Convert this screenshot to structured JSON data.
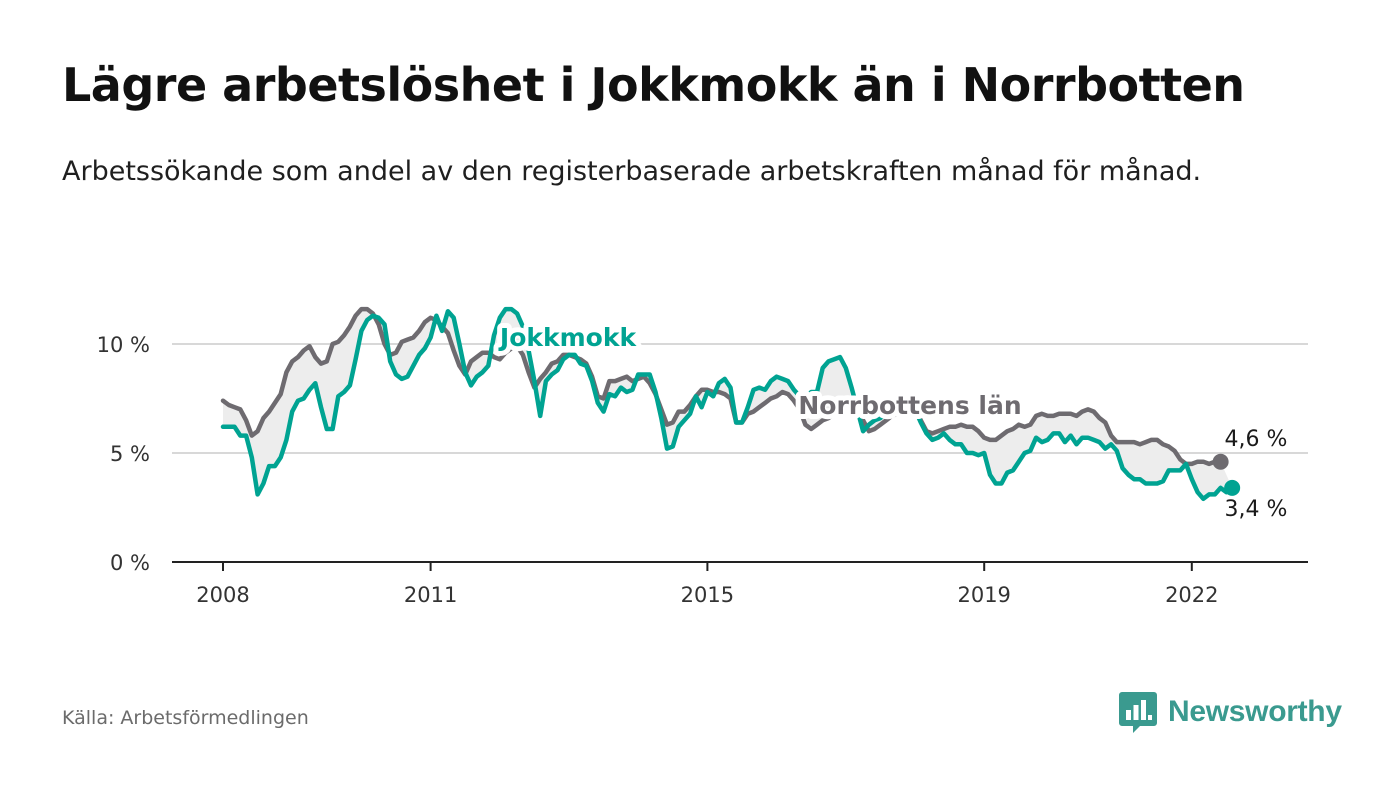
{
  "title": "Lägre arbetslöshet i Jokkmokk än i Norrbotten",
  "subtitle": "Arbetssökande som andel av den registerbaserade arbetskraften månad för månad.",
  "source": "Källa: Arbetsförmedlingen",
  "brand": "Newsworthy",
  "colors": {
    "jokkmokk": "#00a392",
    "norrbotten": "#6e6b70",
    "fill": "#ededed",
    "grid": "#d8d8d8"
  },
  "chart_data": {
    "type": "line",
    "title": "Lägre arbetslöshet i Jokkmokk än i Norrbotten",
    "xlabel": "",
    "ylabel": "",
    "xlim": [
      2008.0,
      2023.25
    ],
    "ylim": [
      0,
      10
    ],
    "y_ticks": [
      {
        "value": 0,
        "label": "0 %"
      },
      {
        "value": 5,
        "label": "5 %"
      },
      {
        "value": 10,
        "label": "10 %"
      }
    ],
    "x_ticks": [
      {
        "value": 2008,
        "label": "2008"
      },
      {
        "value": 2011,
        "label": "2011"
      },
      {
        "value": 2015,
        "label": "2015"
      },
      {
        "value": 2019,
        "label": "2019"
      },
      {
        "value": 2022,
        "label": "2022"
      }
    ],
    "series": [
      {
        "name": "Jokkmokk",
        "label": "Jokkmokk",
        "end_label": "3,4 %",
        "values": [
          6.2,
          6.2,
          6.2,
          5.8,
          5.8,
          4.8,
          3.1,
          3.6,
          4.4,
          4.4,
          4.8,
          5.6,
          6.9,
          7.4,
          7.5,
          7.9,
          8.2,
          7.1,
          6.1,
          6.1,
          7.6,
          7.8,
          8.1,
          9.3,
          10.6,
          11.1,
          11.3,
          11.2,
          10.9,
          9.2,
          8.6,
          8.4,
          8.5,
          9.0,
          9.5,
          9.8,
          10.3,
          11.3,
          10.6,
          11.5,
          11.2,
          10.0,
          8.7,
          8.1,
          8.5,
          8.7,
          9.0,
          10.4,
          11.2,
          11.6,
          11.6,
          11.4,
          10.8,
          9.7,
          8.3,
          6.7,
          8.3,
          8.6,
          8.8,
          9.3,
          9.5,
          9.5,
          9.1,
          9.0,
          8.3,
          7.3,
          6.9,
          7.7,
          7.6,
          8.0,
          7.8,
          7.9,
          8.6,
          8.6,
          8.6,
          7.8,
          6.6,
          5.2,
          5.3,
          6.2,
          6.5,
          6.8,
          7.6,
          7.1,
          7.8,
          7.6,
          8.2,
          8.4,
          8.0,
          6.4,
          6.4,
          7.1,
          7.9,
          8.0,
          7.9,
          8.3,
          8.5,
          8.4,
          8.3,
          7.9,
          7.6,
          7.5,
          7.8,
          7.8,
          8.9,
          9.2,
          9.3,
          9.4,
          8.9,
          8.0,
          7.0,
          6.0,
          6.3,
          6.5,
          6.6,
          6.8,
          7.0,
          7.1,
          7.3,
          7.4,
          7.0,
          6.4,
          5.9,
          5.6,
          5.7,
          5.9,
          5.6,
          5.4,
          5.4,
          5.0,
          5.0,
          4.9,
          5.0,
          4.0,
          3.6,
          3.6,
          4.1,
          4.2,
          4.6,
          5.0,
          5.1,
          5.7,
          5.5,
          5.6,
          5.9,
          5.9,
          5.5,
          5.8,
          5.4,
          5.7,
          5.7,
          5.6,
          5.5,
          5.2,
          5.4,
          5.1,
          4.3,
          4.0,
          3.8,
          3.8,
          3.6,
          3.6,
          3.6,
          3.7,
          4.2,
          4.2,
          4.2,
          4.5,
          3.8,
          3.2,
          2.9,
          3.1,
          3.1,
          3.4,
          3.2,
          3.4
        ]
      },
      {
        "name": "Norrbottens län",
        "label": "Norrbottens län",
        "end_label": "4,6 %",
        "values": [
          7.4,
          7.2,
          7.1,
          7.0,
          6.5,
          5.8,
          6.0,
          6.6,
          6.9,
          7.3,
          7.7,
          8.7,
          9.2,
          9.4,
          9.7,
          9.9,
          9.4,
          9.1,
          9.2,
          10.0,
          10.1,
          10.4,
          10.8,
          11.3,
          11.6,
          11.6,
          11.4,
          10.9,
          10.0,
          9.5,
          9.6,
          10.1,
          10.2,
          10.3,
          10.6,
          11.0,
          11.2,
          11.1,
          10.8,
          10.5,
          9.7,
          9.0,
          8.6,
          9.2,
          9.4,
          9.6,
          9.6,
          9.4,
          9.3,
          9.6,
          9.8,
          9.9,
          9.5,
          8.7,
          8.0,
          8.4,
          8.7,
          9.1,
          9.2,
          9.5,
          9.5,
          9.4,
          9.3,
          9.1,
          8.5,
          7.6,
          7.5,
          8.3,
          8.3,
          8.4,
          8.5,
          8.3,
          8.4,
          8.5,
          8.2,
          7.7,
          7.0,
          6.3,
          6.4,
          6.9,
          6.9,
          7.2,
          7.6,
          7.9,
          7.9,
          7.8,
          7.8,
          7.7,
          7.5,
          6.4,
          6.4,
          6.8,
          6.9,
          7.1,
          7.3,
          7.5,
          7.6,
          7.8,
          7.7,
          7.4,
          7.0,
          6.3,
          6.1,
          6.3,
          6.5,
          6.6,
          6.8,
          7.0,
          7.1,
          7.2,
          6.9,
          6.5,
          6.0,
          6.1,
          6.3,
          6.5,
          6.7,
          6.8,
          6.9,
          7.0,
          7.0,
          6.5,
          6.0,
          5.9,
          6.0,
          6.1,
          6.2,
          6.2,
          6.3,
          6.2,
          6.2,
          6.0,
          5.7,
          5.6,
          5.6,
          5.8,
          6.0,
          6.1,
          6.3,
          6.2,
          6.3,
          6.7,
          6.8,
          6.7,
          6.7,
          6.8,
          6.8,
          6.8,
          6.7,
          6.9,
          7.0,
          6.9,
          6.6,
          6.4,
          5.8,
          5.5,
          5.5,
          5.5,
          5.5,
          5.4,
          5.5,
          5.6,
          5.6,
          5.4,
          5.3,
          5.1,
          4.7,
          4.5,
          4.5,
          4.6,
          4.6,
          4.5,
          4.6,
          4.6
        ]
      }
    ]
  }
}
